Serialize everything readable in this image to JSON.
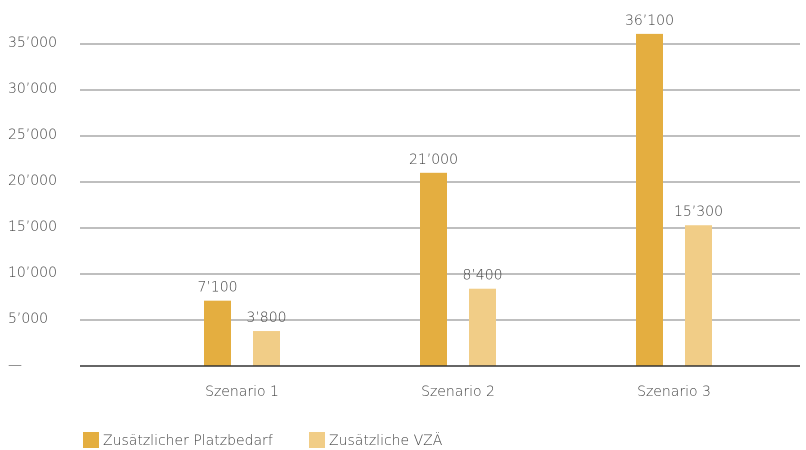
{
  "chart_data": {
    "type": "bar",
    "categories": [
      "Szenario 1",
      "Szenario 2",
      "Szenario 3"
    ],
    "series": [
      {
        "name": "Zusätzlicher Platzbedarf",
        "color": "#e4ae40",
        "values": [
          7100,
          21000,
          36100
        ],
        "value_labels": [
          "7’100",
          "21’000",
          "36’100"
        ]
      },
      {
        "name": "Zusätzliche VZÄ",
        "color": "#f1cd87",
        "values": [
          3800,
          8400,
          15300
        ],
        "value_labels": [
          "3’800",
          "8’400",
          "15’300"
        ]
      }
    ],
    "ylim": [
      0,
      35000
    ],
    "yticks": [
      {
        "value": 0,
        "label": "—"
      },
      {
        "value": 5000,
        "label": "5’000"
      },
      {
        "value": 10000,
        "label": "10’000"
      },
      {
        "value": 15000,
        "label": "15’000"
      },
      {
        "value": 20000,
        "label": "20’000"
      },
      {
        "value": 25000,
        "label": "25’000"
      },
      {
        "value": 30000,
        "label": "30’000"
      },
      {
        "value": 35000,
        "label": "35’000"
      }
    ],
    "grid": true
  }
}
